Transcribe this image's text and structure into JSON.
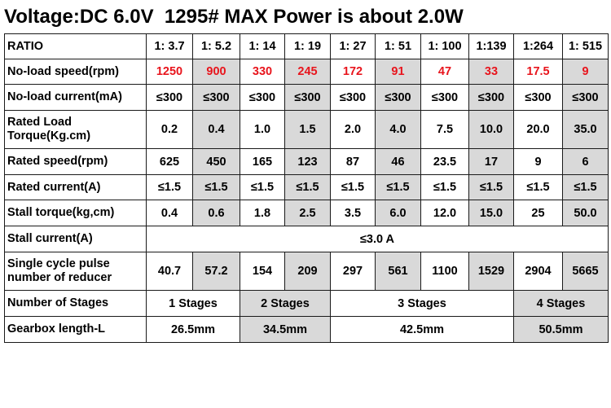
{
  "title": "Voltage:DC 6.0V  1295# MAX Power is about 2.0W",
  "rows": {
    "ratio": {
      "label": "RATIO",
      "values": [
        "1: 3.7",
        "1: 5.2",
        "1: 14",
        "1: 19",
        "1: 27",
        "1: 51",
        "1: 100",
        "1:139",
        "1:264",
        "1: 515"
      ]
    },
    "noload_speed": {
      "label": "No-load speed(rpm)",
      "values": [
        "1250",
        "900",
        "330",
        "245",
        "172",
        "91",
        "47",
        "33",
        "17.5",
        "9"
      ],
      "color": "#e8141c"
    },
    "noload_current": {
      "label": "No-load current(mA)",
      "values": [
        "≤300",
        "≤300",
        "≤300",
        "≤300",
        "≤300",
        "≤300",
        "≤300",
        "≤300",
        "≤300",
        "≤300"
      ]
    },
    "rated_torque": {
      "label": "Rated Load Torque(Kg.cm)",
      "values": [
        "0.2",
        "0.4",
        "1.0",
        "1.5",
        "2.0",
        "4.0",
        "7.5",
        "10.0",
        "20.0",
        "35.0"
      ]
    },
    "rated_speed": {
      "label": "Rated speed(rpm)",
      "values": [
        "625",
        "450",
        "165",
        "123",
        "87",
        "46",
        "23.5",
        "17",
        "9",
        "6"
      ]
    },
    "rated_current": {
      "label": "Rated current(A)",
      "values": [
        "≤1.5",
        "≤1.5",
        "≤1.5",
        "≤1.5",
        "≤1.5",
        "≤1.5",
        "≤1.5",
        "≤1.5",
        "≤1.5",
        "≤1.5"
      ]
    },
    "stall_torque": {
      "label": "Stall torque(kg,cm)",
      "values": [
        "0.4",
        "0.6",
        "1.8",
        "2.5",
        "3.5",
        "6.0",
        "12.0",
        "15.0",
        "25",
        "50.0"
      ]
    },
    "stall_current": {
      "label": "Stall current(A)",
      "value": "≤3.0 A"
    },
    "pulse": {
      "label": "Single cycle pulse number of reducer",
      "values": [
        "40.7",
        "57.2",
        "154",
        "209",
        "297",
        "561",
        "1100",
        "1529",
        "2904",
        "5665"
      ]
    },
    "stages": {
      "label": "Number of Stages",
      "groups": [
        "1 Stages",
        "2 Stages",
        "3 Stages",
        "4 Stages"
      ]
    },
    "gearbox": {
      "label": "Gearbox length-L",
      "groups": [
        "26.5mm",
        "34.5mm",
        "42.5mm",
        "50.5mm"
      ]
    }
  }
}
